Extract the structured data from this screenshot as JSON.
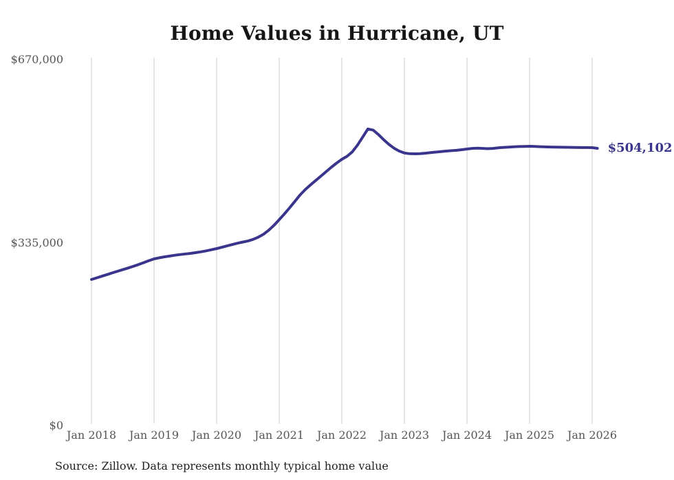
{
  "title": "Home Values in Hurricane, UT",
  "source_note": "Source: Zillow. Data represents monthly typical home value",
  "colors": {
    "line": "#3A358C",
    "grid": "#CBCBCB",
    "axis_text": "#555555",
    "title_text": "#161616",
    "source_text": "#1F1F1F",
    "background": "#FFFFFF"
  },
  "chart_data": {
    "type": "line",
    "title": "Home Values in Hurricane, UT",
    "unit": "USD",
    "frequency": "monthly",
    "x_start": "2018-01",
    "x_end": "2026-02",
    "x_tick_labels": [
      "Jan 2018",
      "Jan 2019",
      "Jan 2020",
      "Jan 2021",
      "Jan 2022",
      "Jan 2023",
      "Jan 2024",
      "Jan 2025",
      "Jan 2026"
    ],
    "y_axis": [
      {
        "value": 0,
        "label": "$0"
      },
      {
        "value": 335000,
        "label": "$335,000"
      },
      {
        "value": 670000,
        "label": "$670,000"
      }
    ],
    "ylim": [
      0,
      670000
    ],
    "grid": "vertical",
    "legend": "none",
    "final_value": 504102,
    "final_value_label": "$504,102",
    "peak_value_estimate": 539500,
    "series": [
      {
        "name": "Typical home value",
        "points": [
          264000,
          267000,
          270000,
          273000,
          276000,
          279000,
          282000,
          285000,
          288000,
          291200,
          294800,
          298400,
          301700,
          303700,
          305400,
          306900,
          308300,
          309600,
          310700,
          311800,
          313100,
          314600,
          316400,
          318400,
          320500,
          322900,
          325400,
          327900,
          330300,
          332500,
          334500,
          337400,
          341500,
          347000,
          354200,
          363200,
          373500,
          384200,
          395400,
          407000,
          418700,
          428600,
          437200,
          445300,
          453300,
          461500,
          469500,
          477000,
          484000,
          489500,
          497500,
          510000,
          524500,
          539500,
          537500,
          529500,
          520000,
          511500,
          504500,
          499000,
          495500,
          494300,
          494000,
          494400,
          495200,
          496200,
          497200,
          498200,
          499100,
          499800,
          500400,
          501600,
          502800,
          503900,
          504400,
          503900,
          503400,
          503900,
          504900,
          505800,
          506300,
          506800,
          507300,
          507600,
          507800,
          507500,
          507100,
          506700,
          506400,
          506200,
          506100,
          505900,
          505800,
          505600,
          505500,
          505400,
          505300,
          504102
        ]
      }
    ]
  }
}
